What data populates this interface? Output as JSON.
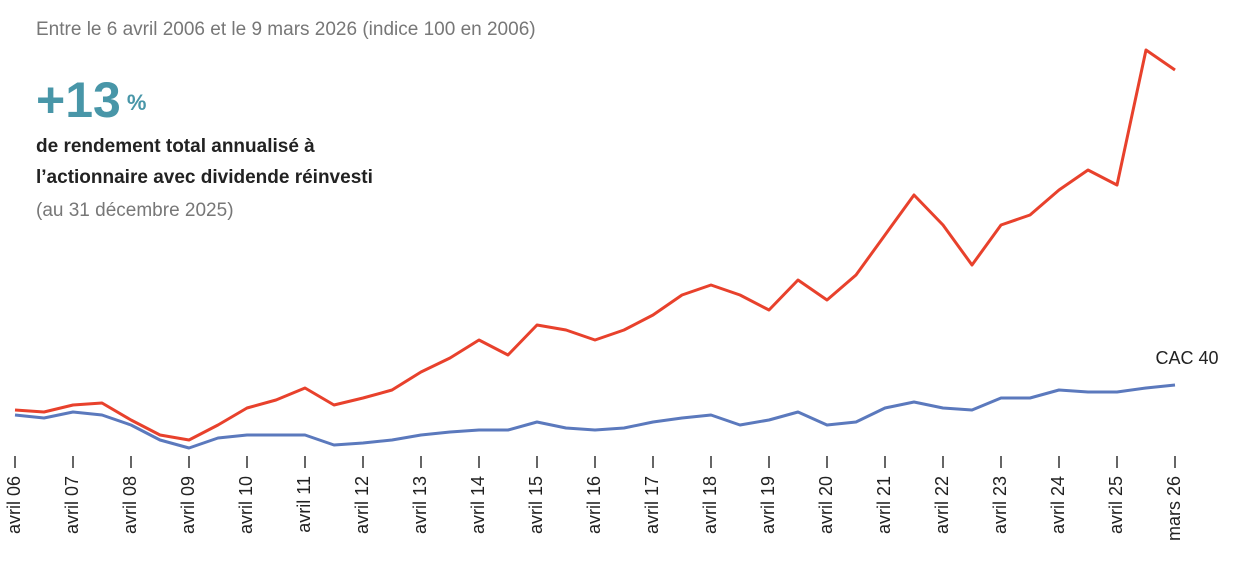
{
  "chart_data": {
    "type": "line",
    "subtitle": "Entre le 6 avril 2006 et le 9 mars 2026 (indice 100 en 2006)",
    "annotations": [
      "+13",
      "%",
      "de rendement total annualisé à",
      "l’actionnaire avec dividende réinvesti",
      "(au 31 décembre 2025)"
    ],
    "categories": [
      "avril 06",
      null,
      "avril 07",
      null,
      "avril 08",
      null,
      "avril 09",
      null,
      "avril 10",
      null,
      "avril 11",
      null,
      "avril 12",
      null,
      "avril 13",
      null,
      "avril 14",
      null,
      "avril 15",
      null,
      "avril 16",
      null,
      "avril 17",
      null,
      "avril 18",
      null,
      "avril 19",
      null,
      "avril 20",
      null,
      "avril 21",
      null,
      "avril 22",
      null,
      "avril 23",
      null,
      "avril 24",
      null,
      "avril 25",
      null,
      "mars 26"
    ],
    "series": [
      {
        "color": "#e8412c",
        "values": [
          100,
          96,
          110,
          114,
          80,
          50,
          40,
          70,
          104,
          120,
          144,
          110,
          124,
          140,
          176,
          204,
          240,
          210,
          270,
          260,
          240,
          260,
          290,
          330,
          350,
          330,
          300,
          360,
          320,
          370,
          450,
          530,
          470,
          390,
          470,
          490,
          540,
          580,
          550,
          820,
          780
        ]
      },
      {
        "name": "CAC 40",
        "color": "#5b79bd",
        "values": [
          90,
          84,
          96,
          90,
          70,
          40,
          24,
          44,
          50,
          50,
          50,
          30,
          34,
          40,
          50,
          56,
          60,
          60,
          76,
          64,
          60,
          64,
          76,
          84,
          90,
          70,
          80,
          96,
          70,
          76,
          104,
          116,
          104,
          100,
          124,
          124,
          140,
          136,
          136,
          144,
          150
        ]
      }
    ],
    "ylim": [
      10,
      900
    ]
  }
}
